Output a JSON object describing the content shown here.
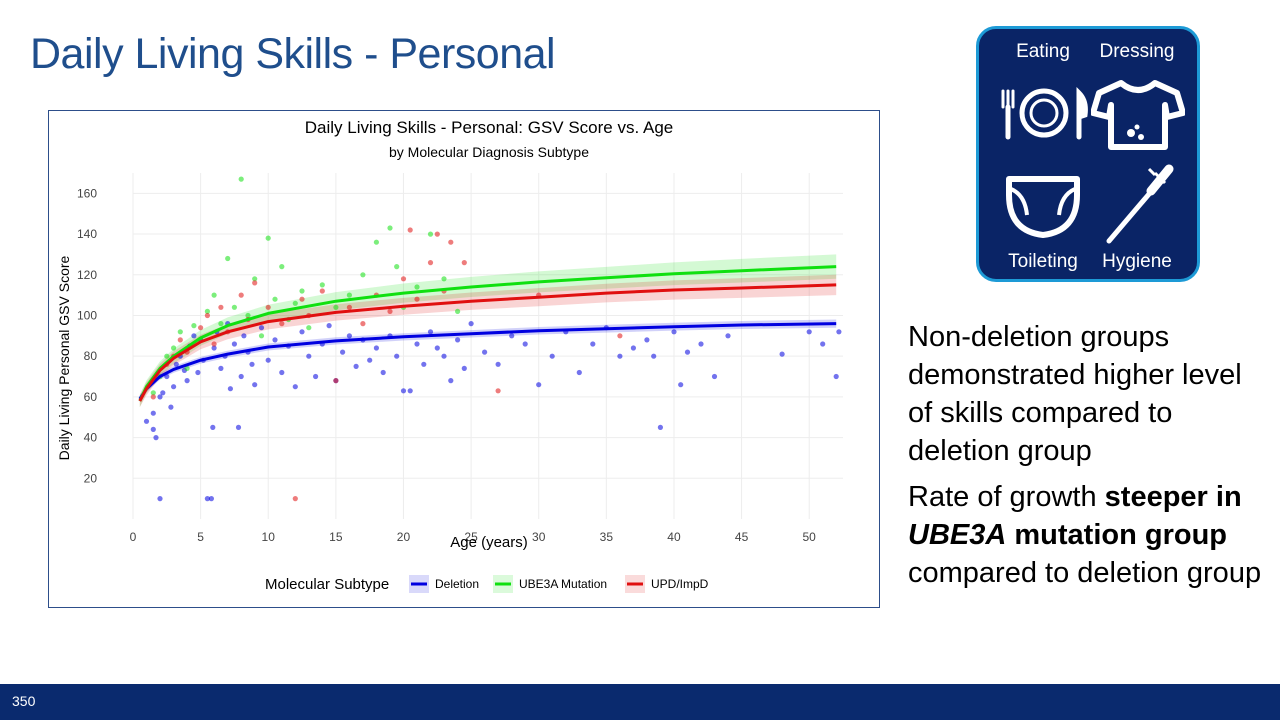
{
  "slide": {
    "title": "Daily Living Skills - Personal",
    "page_number": "350"
  },
  "icon_panel": {
    "labels": [
      "Eating",
      "Dressing",
      "Toileting",
      "Hygiene"
    ],
    "icons": [
      "utensils-plate-icon",
      "shirt-icon",
      "diaper-icon",
      "toothbrush-icon"
    ],
    "background": "#0a2466",
    "border": "#1d9ad6"
  },
  "bullets": {
    "b1": "Non-deletion groups demonstrated higher level of skills compared to deletion group",
    "b2_part1": "Rate of growth ",
    "b2_bold1": "steeper in ",
    "b2_italic": "UBE3A",
    "b2_bold2": " mutation group",
    "b2_part2": " compared to deletion group"
  },
  "chart_data": {
    "type": "scatter",
    "title": "Daily Living Skills - Personal: GSV Score vs. Age",
    "subtitle": "by Molecular Diagnosis Subtype",
    "xlabel": "Age (years)",
    "ylabel": "Daily Living Personal GSV Score",
    "xlim": [
      0,
      52.5
    ],
    "ylim": [
      0,
      170
    ],
    "xticks": [
      0,
      5,
      10,
      15,
      20,
      25,
      30,
      35,
      40,
      45,
      50
    ],
    "yticks": [
      20,
      40,
      60,
      80,
      100,
      120,
      140,
      160
    ],
    "grid": true,
    "legend": {
      "title": "Molecular Subtype",
      "position": "bottom"
    },
    "series": [
      {
        "name": "Deletion",
        "color": "#0000e0",
        "fit": [
          [
            0.5,
            59
          ],
          [
            1,
            64
          ],
          [
            2,
            70
          ],
          [
            3,
            73.5
          ],
          [
            5,
            78
          ],
          [
            7,
            81
          ],
          [
            10,
            84.5
          ],
          [
            15,
            87.5
          ],
          [
            20,
            89.5
          ],
          [
            25,
            91
          ],
          [
            30,
            92.5
          ],
          [
            35,
            93.5
          ],
          [
            40,
            94.5
          ],
          [
            45,
            95.3
          ],
          [
            52,
            96
          ]
        ],
        "ci": [
          1.5,
          2
        ],
        "points": [
          [
            1,
            48
          ],
          [
            1.5,
            52
          ],
          [
            1.5,
            44
          ],
          [
            1.7,
            40
          ],
          [
            2,
            10
          ],
          [
            2,
            60
          ],
          [
            2.2,
            62
          ],
          [
            2.5,
            70
          ],
          [
            2.8,
            55
          ],
          [
            3,
            65
          ],
          [
            3.2,
            76
          ],
          [
            3.5,
            80
          ],
          [
            3.8,
            73
          ],
          [
            4,
            68
          ],
          [
            4.2,
            85
          ],
          [
            4.5,
            90
          ],
          [
            4.8,
            72
          ],
          [
            5,
            88
          ],
          [
            5.2,
            78
          ],
          [
            5.5,
            10
          ],
          [
            5.8,
            10
          ],
          [
            5.9,
            45
          ],
          [
            6,
            84
          ],
          [
            6.2,
            92
          ],
          [
            6.5,
            74
          ],
          [
            6.8,
            80
          ],
          [
            7,
            96
          ],
          [
            7.2,
            64
          ],
          [
            7.5,
            86
          ],
          [
            7.8,
            45
          ],
          [
            8,
            70
          ],
          [
            8.2,
            90
          ],
          [
            8.5,
            82
          ],
          [
            8.8,
            76
          ],
          [
            9,
            66
          ],
          [
            9.5,
            94
          ],
          [
            10,
            78
          ],
          [
            10.5,
            88
          ],
          [
            11,
            72
          ],
          [
            11.5,
            85
          ],
          [
            12,
            65
          ],
          [
            12.5,
            92
          ],
          [
            13,
            80
          ],
          [
            13.5,
            70
          ],
          [
            14,
            86
          ],
          [
            14.5,
            95
          ],
          [
            15,
            68
          ],
          [
            15.5,
            82
          ],
          [
            16,
            90
          ],
          [
            16.5,
            75
          ],
          [
            17,
            88
          ],
          [
            17.5,
            78
          ],
          [
            18,
            84
          ],
          [
            18.5,
            72
          ],
          [
            19,
            90
          ],
          [
            19.5,
            80
          ],
          [
            20,
            63
          ],
          [
            20.5,
            63
          ],
          [
            21,
            86
          ],
          [
            21.5,
            76
          ],
          [
            22,
            92
          ],
          [
            22.5,
            84
          ],
          [
            23,
            80
          ],
          [
            23.5,
            68
          ],
          [
            24,
            88
          ],
          [
            24.5,
            74
          ],
          [
            25,
            96
          ],
          [
            26,
            82
          ],
          [
            27,
            76
          ],
          [
            28,
            90
          ],
          [
            29,
            86
          ],
          [
            30,
            66
          ],
          [
            31,
            80
          ],
          [
            32,
            92
          ],
          [
            33,
            72
          ],
          [
            34,
            86
          ],
          [
            35,
            94
          ],
          [
            36,
            80
          ],
          [
            37,
            84
          ],
          [
            38,
            88
          ],
          [
            38.5,
            80
          ],
          [
            39,
            45
          ],
          [
            40,
            92
          ],
          [
            40.5,
            66
          ],
          [
            41,
            82
          ],
          [
            42,
            86
          ],
          [
            43,
            70
          ],
          [
            44,
            90
          ],
          [
            48,
            81
          ],
          [
            50,
            92
          ],
          [
            51,
            86
          ],
          [
            52,
            70
          ],
          [
            52.2,
            92
          ]
        ]
      },
      {
        "name": "UBE3A Mutation",
        "color": "#10e010",
        "fit": [
          [
            0.5,
            58
          ],
          [
            1,
            65
          ],
          [
            2,
            74
          ],
          [
            3,
            80
          ],
          [
            5,
            89
          ],
          [
            7,
            95
          ],
          [
            10,
            101
          ],
          [
            15,
            107
          ],
          [
            20,
            111
          ],
          [
            25,
            114
          ],
          [
            30,
            116.5
          ],
          [
            35,
            118.5
          ],
          [
            40,
            120.5
          ],
          [
            45,
            122
          ],
          [
            52,
            124
          ]
        ],
        "ci": [
          3,
          6
        ],
        "points": [
          [
            1.5,
            62
          ],
          [
            2,
            70
          ],
          [
            2.5,
            80
          ],
          [
            3,
            84
          ],
          [
            3.5,
            92
          ],
          [
            4,
            74
          ],
          [
            4.5,
            95
          ],
          [
            5,
            88
          ],
          [
            5.5,
            102
          ],
          [
            6,
            110
          ],
          [
            6.5,
            96
          ],
          [
            7,
            128
          ],
          [
            7.5,
            104
          ],
          [
            8,
            167
          ],
          [
            8.5,
            100
          ],
          [
            9,
            118
          ],
          [
            9.5,
            90
          ],
          [
            10,
            138
          ],
          [
            10.5,
            108
          ],
          [
            11,
            124
          ],
          [
            11.5,
            98
          ],
          [
            12,
            106
          ],
          [
            12.5,
            112
          ],
          [
            13,
            94
          ],
          [
            14,
            115
          ],
          [
            15,
            104
          ],
          [
            16,
            110
          ],
          [
            17,
            120
          ],
          [
            18,
            136
          ],
          [
            19,
            143
          ],
          [
            19.5,
            124
          ],
          [
            20,
            104
          ],
          [
            21,
            114
          ],
          [
            22,
            140
          ],
          [
            23,
            118
          ],
          [
            24,
            102
          ]
        ]
      },
      {
        "name": "UPD/ImpD",
        "color": "#e01010",
        "fit": [
          [
            0.5,
            58
          ],
          [
            1,
            64
          ],
          [
            2,
            73
          ],
          [
            3,
            79
          ],
          [
            5,
            87
          ],
          [
            7,
            92
          ],
          [
            10,
            97
          ],
          [
            15,
            101.5
          ],
          [
            20,
            104.5
          ],
          [
            25,
            107
          ],
          [
            30,
            109
          ],
          [
            35,
            111
          ],
          [
            40,
            112.5
          ],
          [
            45,
            113.5
          ],
          [
            52,
            115
          ]
        ],
        "ci": [
          3,
          5
        ],
        "points": [
          [
            1.5,
            60
          ],
          [
            2.5,
            76
          ],
          [
            3,
            80
          ],
          [
            3.5,
            88
          ],
          [
            4,
            82
          ],
          [
            5,
            94
          ],
          [
            5.5,
            100
          ],
          [
            6,
            86
          ],
          [
            6.5,
            104
          ],
          [
            7,
            92
          ],
          [
            8,
            110
          ],
          [
            8.5,
            98
          ],
          [
            9,
            116
          ],
          [
            10,
            104
          ],
          [
            11,
            96
          ],
          [
            12,
            10
          ],
          [
            12.5,
            108
          ],
          [
            13,
            100
          ],
          [
            14,
            112
          ],
          [
            15,
            68
          ],
          [
            16,
            104
          ],
          [
            17,
            96
          ],
          [
            18,
            110
          ],
          [
            19,
            102
          ],
          [
            20,
            118
          ],
          [
            20.5,
            142
          ],
          [
            21,
            108
          ],
          [
            22,
            126
          ],
          [
            22.5,
            140
          ],
          [
            23,
            112
          ],
          [
            23.5,
            136
          ],
          [
            24.5,
            126
          ],
          [
            27,
            63
          ],
          [
            30,
            110
          ],
          [
            36,
            90
          ]
        ]
      }
    ]
  }
}
